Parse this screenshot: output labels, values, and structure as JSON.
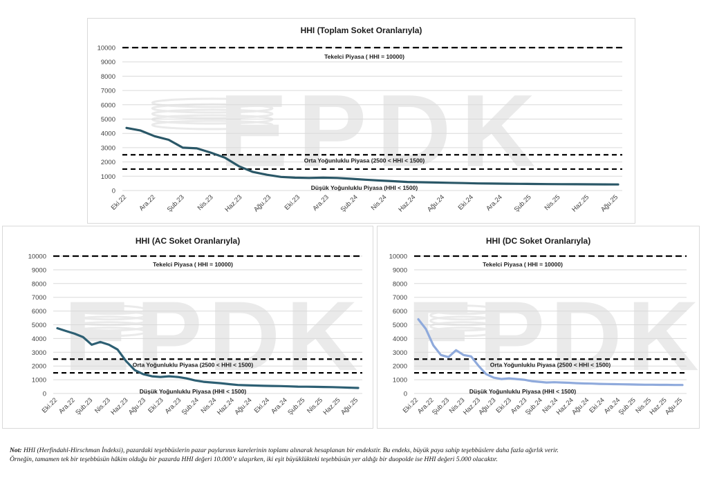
{
  "colors": {
    "main_series": "#2a5767",
    "ac_series": "#2d5f73",
    "dc_series": "#8faadc",
    "threshold": "#000000",
    "grid": "#d9d9d9",
    "watermark": "#d9d9d9"
  },
  "watermark": {
    "text": "EPDK"
  },
  "note": {
    "label": "Not:",
    "line1": "HHI (Herfindahl-Hirschman İndeksi), pazardaki teşebbüslerin pazar paylarının karelerinin toplamı alınarak hesaplanan bir endekstir. Bu endeks, büyük paya sahip teşebbüslere daha fazla ağırlık verir.",
    "line2": "Örneğin, tamamen tek bir teşebbüsün hâkim olduğu bir pazarda HHI değeri 10.000’e ulaşırken, iki eşit büyüklükteki teşebbüsün yer aldığı bir duopolde ise HHI değeri 5.000 olacaktır."
  },
  "chart_data": [
    {
      "type": "line",
      "title": "HHI (Toplam Soket Oranlarıyla)",
      "ylim": [
        0,
        10000
      ],
      "yticks": [
        0,
        1000,
        2000,
        3000,
        4000,
        5000,
        6000,
        7000,
        8000,
        9000,
        10000
      ],
      "grid": true,
      "x_tick_labels": [
        "Eki.22",
        "Ara.22",
        "Şub.23",
        "Nis.23",
        "Haz.23",
        "Ağu.23",
        "Eki.23",
        "Ara.23",
        "Şub.24",
        "Nis.24",
        "Haz.24",
        "Ağu.24",
        "Eki.24",
        "Ara.24",
        "Şub.25",
        "Nis.25",
        "Haz.25",
        "Ağu.25"
      ],
      "series": [
        {
          "values": [
            4380,
            4200,
            3800,
            3550,
            3000,
            2950,
            2650,
            2300,
            1700,
            1300,
            1100,
            950,
            900,
            880,
            900,
            880,
            820,
            760,
            700,
            650,
            600,
            580,
            560,
            540,
            520,
            500,
            490,
            480,
            470,
            460,
            450,
            445,
            440,
            435,
            430,
            425
          ]
        }
      ],
      "thresholds": [
        {
          "value": 10000,
          "label": "Tekelci Piyasa ( HHI = 10000)"
        },
        {
          "value": 2500,
          "label": "Orta Yoğunluklu Piyasa (2500 < HHI < 1500)"
        },
        {
          "value": 1500,
          "label": "Düşük Yoğunluklu Piyasa (HHI < 1500)"
        }
      ]
    },
    {
      "type": "line",
      "title": "HHI (AC Soket Oranlarıyla)",
      "ylim": [
        0,
        10000
      ],
      "yticks": [
        0,
        1000,
        2000,
        3000,
        4000,
        5000,
        6000,
        7000,
        8000,
        9000,
        10000
      ],
      "grid": true,
      "x_tick_labels": [
        "Eki.22",
        "Ara.22",
        "Şub.23",
        "Nis.23",
        "Haz.23",
        "Ağu.23",
        "Eki.23",
        "Ara.23",
        "Şub.24",
        "Nis.24",
        "Haz.24",
        "Ağu.24",
        "Eki.24",
        "Ara.24",
        "Şub.25",
        "Nis.25",
        "Haz.25",
        "Ağu.25"
      ],
      "series": [
        {
          "values": [
            4750,
            4550,
            4350,
            4100,
            3550,
            3750,
            3550,
            3200,
            2350,
            1700,
            1400,
            1250,
            1200,
            1250,
            1200,
            1100,
            950,
            850,
            800,
            750,
            680,
            620,
            600,
            580,
            560,
            550,
            540,
            520,
            500,
            490,
            480,
            470,
            460,
            440,
            420,
            400
          ]
        }
      ],
      "thresholds": [
        {
          "value": 10000,
          "label": "Tekelci Piyasa ( HHI = 10000)"
        },
        {
          "value": 2500,
          "label": "Orta Yoğunluklu Piyasa (2500 < HHI < 1500)"
        },
        {
          "value": 1500,
          "label": "Düşük Yoğunluklu Piyasa (HHI < 1500)"
        }
      ]
    },
    {
      "type": "line",
      "title": "HHI (DC Soket Oranlarıyla)",
      "ylim": [
        0,
        10000
      ],
      "yticks": [
        0,
        1000,
        2000,
        3000,
        4000,
        5000,
        6000,
        7000,
        8000,
        9000,
        10000
      ],
      "grid": true,
      "x_tick_labels": [
        "Eki.22",
        "Ara.22",
        "Şub.23",
        "Nis.23",
        "Haz.23",
        "Ağu.23",
        "Eki.23",
        "Ara.23",
        "Şub.24",
        "Nis.24",
        "Haz.24",
        "Ağu.24",
        "Eki.24",
        "Ara.24",
        "Şub.25",
        "Nis.25",
        "Haz.25",
        "Ağu.25"
      ],
      "series": [
        {
          "values": [
            5400,
            4700,
            3500,
            2800,
            2650,
            3150,
            2800,
            2700,
            2000,
            1400,
            1150,
            1050,
            1100,
            1050,
            1000,
            900,
            850,
            800,
            820,
            800,
            780,
            750,
            730,
            720,
            700,
            690,
            680,
            670,
            660,
            650,
            640,
            640,
            630,
            630,
            620,
            620
          ]
        }
      ],
      "thresholds": [
        {
          "value": 10000,
          "label": "Tekelci Piyasa ( HHI = 10000)"
        },
        {
          "value": 2500,
          "label": "Orta Yoğunluklu Piyasa (2500 < HHI < 1500)"
        },
        {
          "value": 1500,
          "label": "Düşük Yoğunluklu Piyasa (HHI < 1500)"
        }
      ]
    }
  ]
}
